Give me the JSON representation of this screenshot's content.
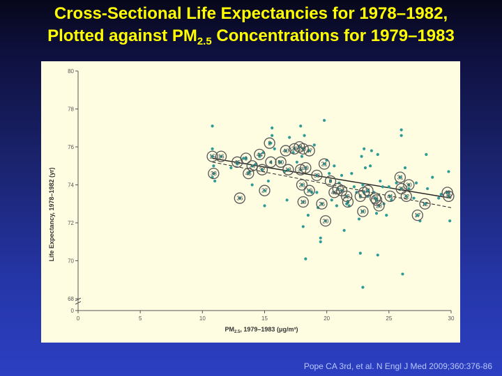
{
  "slide": {
    "title_line1": "Cross-Sectional Life Expectancies for 1978–1982,",
    "title_line2_a": "Plotted against PM",
    "title_line2_sub": "2.5",
    "title_line2_b": " Concentrations for 1979–1983",
    "citation": "Pope CA 3rd, et al. N Engl J Med 2009;360:376-86"
  },
  "colors": {
    "title": "#ffff00",
    "points": "#2e9c96",
    "circles": "#555555",
    "panel": "#fffde1",
    "axis": "#555555"
  },
  "chart_data": {
    "type": "scatter",
    "xlabel_main": "PM",
    "xlabel_sub": "2.5",
    "xlabel_rest": ", 1979–1983 (μg/m³)",
    "ylabel": "Life Expectancy, 1978–1982 (yr)",
    "xlim": [
      0,
      30
    ],
    "ylim": [
      68,
      80
    ],
    "y_break": true,
    "x_ticks": [
      0,
      5,
      10,
      15,
      20,
      25,
      30
    ],
    "y_ticks": [
      68,
      70,
      72,
      74,
      76,
      78,
      80
    ],
    "y_zero_label": "0",
    "points": [
      [
        10.8,
        77.1
      ],
      [
        10.8,
        75.9
      ],
      [
        10.9,
        75.0
      ],
      [
        10.8,
        74.4
      ],
      [
        11.0,
        74.2
      ],
      [
        12.3,
        74.9
      ],
      [
        12.8,
        75.1
      ],
      [
        13.3,
        75.4
      ],
      [
        13.8,
        74.7
      ],
      [
        14.0,
        74.0
      ],
      [
        14.3,
        75.1
      ],
      [
        14.6,
        75.5
      ],
      [
        14.9,
        75.7
      ],
      [
        15.0,
        72.9
      ],
      [
        15.3,
        74.2
      ],
      [
        15.6,
        76.6
      ],
      [
        15.6,
        77.0
      ],
      [
        15.5,
        76.2
      ],
      [
        15.8,
        75.9
      ],
      [
        16.2,
        75.2
      ],
      [
        16.6,
        74.7
      ],
      [
        16.8,
        73.2
      ],
      [
        17.0,
        76.5
      ],
      [
        17.3,
        75.7
      ],
      [
        17.6,
        75.2
      ],
      [
        17.9,
        77.1
      ],
      [
        18.0,
        75.5
      ],
      [
        18.2,
        76.6
      ],
      [
        18.1,
        71.8
      ],
      [
        18.3,
        70.1
      ],
      [
        18.5,
        72.4
      ],
      [
        18.8,
        73.6
      ],
      [
        19.0,
        76.1
      ],
      [
        19.2,
        73.6
      ],
      [
        19.3,
        72.8
      ],
      [
        19.5,
        71.2
      ],
      [
        19.5,
        71.0
      ],
      [
        19.8,
        77.4
      ],
      [
        20.0,
        75.3
      ],
      [
        20.2,
        74.6
      ],
      [
        20.4,
        73.2
      ],
      [
        20.6,
        75.0
      ],
      [
        20.8,
        72.9
      ],
      [
        21.0,
        74.1
      ],
      [
        21.2,
        74.5
      ],
      [
        21.4,
        71.6
      ],
      [
        21.6,
        73.0
      ],
      [
        21.8,
        72.9
      ],
      [
        22.0,
        74.6
      ],
      [
        22.2,
        73.9
      ],
      [
        22.4,
        73.6
      ],
      [
        22.6,
        72.2
      ],
      [
        22.7,
        70.4
      ],
      [
        22.8,
        75.5
      ],
      [
        22.9,
        68.6
      ],
      [
        22.9,
        74.0
      ],
      [
        23.0,
        75.9
      ],
      [
        23.1,
        74.9
      ],
      [
        23.3,
        73.4
      ],
      [
        23.5,
        75.0
      ],
      [
        23.6,
        75.8
      ],
      [
        23.8,
        73.6
      ],
      [
        24.0,
        72.5
      ],
      [
        24.1,
        75.6
      ],
      [
        24.1,
        70.3
      ],
      [
        24.3,
        74.2
      ],
      [
        24.5,
        73.9
      ],
      [
        24.6,
        73.0
      ],
      [
        24.8,
        72.4
      ],
      [
        25.0,
        73.9
      ],
      [
        25.2,
        73.2
      ],
      [
        25.6,
        74.1
      ],
      [
        26.0,
        76.9
      ],
      [
        26.0,
        76.6
      ],
      [
        26.1,
        69.3
      ],
      [
        26.3,
        74.9
      ],
      [
        26.6,
        73.8
      ],
      [
        27.0,
        73.3
      ],
      [
        27.2,
        74.1
      ],
      [
        27.5,
        72.1
      ],
      [
        28.0,
        75.6
      ],
      [
        28.1,
        73.8
      ],
      [
        28.5,
        74.4
      ],
      [
        29.0,
        73.3
      ],
      [
        29.2,
        73.5
      ],
      [
        29.8,
        74.7
      ],
      [
        29.9,
        72.1
      ],
      [
        29.8,
        73.6
      ]
    ],
    "labeled_points": [
      {
        "x": 10.8,
        "y": 75.5,
        "label": "15"
      },
      {
        "x": 11.5,
        "y": 75.5,
        "label": "16"
      },
      {
        "x": 10.9,
        "y": 74.6,
        "label": "38"
      },
      {
        "x": 12.8,
        "y": 75.2,
        "label": "46"
      },
      {
        "x": 13.5,
        "y": 75.4,
        "label": "3"
      },
      {
        "x": 14.0,
        "y": 75.0,
        "label": "24"
      },
      {
        "x": 14.6,
        "y": 75.6,
        "label": "44"
      },
      {
        "x": 13.0,
        "y": 73.3,
        "label": "36"
      },
      {
        "x": 13.7,
        "y": 74.6,
        "label": "45"
      },
      {
        "x": 14.8,
        "y": 74.8,
        "label": "32"
      },
      {
        "x": 15.5,
        "y": 75.2,
        "label": "4"
      },
      {
        "x": 15.4,
        "y": 76.2,
        "label": "2"
      },
      {
        "x": 15.0,
        "y": 73.7,
        "label": "27"
      },
      {
        "x": 16.3,
        "y": 75.2,
        "label": "50"
      },
      {
        "x": 16.7,
        "y": 75.8,
        "label": "40"
      },
      {
        "x": 16.9,
        "y": 74.8,
        "label": "13"
      },
      {
        "x": 17.4,
        "y": 75.9,
        "label": "29"
      },
      {
        "x": 17.8,
        "y": 76.0,
        "label": "14"
      },
      {
        "x": 18.1,
        "y": 75.9,
        "label": "35"
      },
      {
        "x": 17.9,
        "y": 74.8,
        "label": "37"
      },
      {
        "x": 18.3,
        "y": 74.9,
        "label": "39"
      },
      {
        "x": 18.6,
        "y": 75.8,
        "label": "47"
      },
      {
        "x": 19.2,
        "y": 74.5,
        "label": "33"
      },
      {
        "x": 18.0,
        "y": 74.0,
        "label": "23"
      },
      {
        "x": 18.6,
        "y": 73.7,
        "label": "19"
      },
      {
        "x": 18.1,
        "y": 73.1,
        "label": "18"
      },
      {
        "x": 19.6,
        "y": 73.0,
        "label": "26"
      },
      {
        "x": 19.8,
        "y": 75.1,
        "label": "21"
      },
      {
        "x": 19.9,
        "y": 72.1,
        "label": "20"
      },
      {
        "x": 20.3,
        "y": 74.2,
        "label": "8"
      },
      {
        "x": 20.6,
        "y": 73.6,
        "label": "48"
      },
      {
        "x": 20.9,
        "y": 73.8,
        "label": "1"
      },
      {
        "x": 21.2,
        "y": 73.7,
        "label": "34"
      },
      {
        "x": 21.6,
        "y": 73.4,
        "label": "42"
      },
      {
        "x": 21.7,
        "y": 73.1,
        "label": "9"
      },
      {
        "x": 22.7,
        "y": 73.4,
        "label": "5"
      },
      {
        "x": 23.0,
        "y": 73.6,
        "label": "7"
      },
      {
        "x": 23.3,
        "y": 73.7,
        "label": "11"
      },
      {
        "x": 22.9,
        "y": 72.6,
        "label": "10"
      },
      {
        "x": 23.9,
        "y": 73.3,
        "label": "43"
      },
      {
        "x": 24.2,
        "y": 72.9,
        "label": "28"
      },
      {
        "x": 24.0,
        "y": 73.2,
        "label": "6"
      },
      {
        "x": 25.1,
        "y": 73.4,
        "label": "41"
      },
      {
        "x": 25.9,
        "y": 74.4,
        "label": "31"
      },
      {
        "x": 26.0,
        "y": 73.8,
        "label": "25"
      },
      {
        "x": 26.6,
        "y": 74.0,
        "label": "30"
      },
      {
        "x": 26.4,
        "y": 73.4,
        "label": "22"
      },
      {
        "x": 27.3,
        "y": 72.4,
        "label": "17"
      },
      {
        "x": 27.9,
        "y": 73.0,
        "label": "12"
      },
      {
        "x": 29.7,
        "y": 73.6,
        "label": "49"
      },
      {
        "x": 29.8,
        "y": 73.4,
        "label": "40"
      }
    ],
    "regression_lines": [
      {
        "style": "solid",
        "x": [
          10.8,
          30
        ],
        "y": [
          75.4,
          73.3
        ]
      },
      {
        "style": "dashed",
        "x": [
          10.8,
          30
        ],
        "y": [
          75.2,
          72.8
        ]
      }
    ]
  }
}
